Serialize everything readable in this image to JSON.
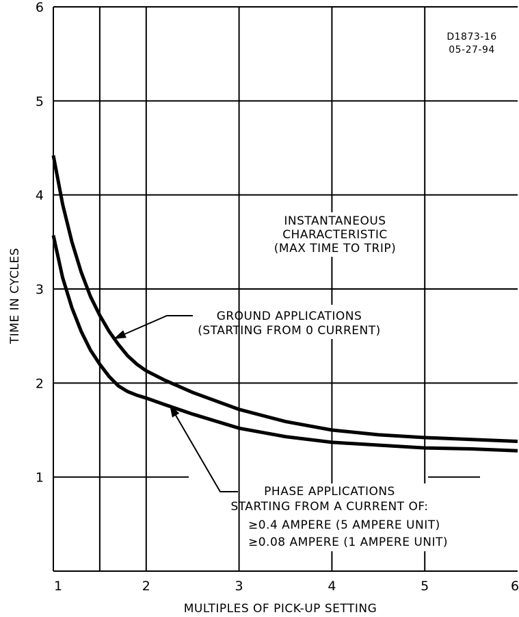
{
  "chart_data": {
    "type": "line",
    "title": "",
    "xlabel": "MULTIPLES OF PICK-UP SETTING",
    "ylabel": "TIME IN CYCLES",
    "xlim": [
      1,
      6
    ],
    "ylim": [
      0,
      6
    ],
    "x_ticks": [
      "1",
      "2",
      "3",
      "4",
      "5",
      "6"
    ],
    "y_ticks": [
      "1",
      "2",
      "3",
      "4",
      "5",
      "6"
    ],
    "grid": true,
    "drawing_ref": [
      "D1873-16",
      "05-27-94"
    ],
    "characteristic_label": [
      "INSTANTANEOUS",
      "CHARACTERISTIC",
      "(MAX TIME TO TRIP)"
    ],
    "series": [
      {
        "label_lines": [
          "GROUND APPLICATIONS",
          "(STARTING FROM 0 CURRENT)"
        ],
        "x": [
          1.0,
          1.1,
          1.2,
          1.3,
          1.4,
          1.5,
          1.6,
          1.7,
          1.8,
          1.9,
          2.0,
          2.2,
          2.5,
          3.0,
          3.5,
          4.0,
          4.5,
          5.0,
          5.5,
          6.0
        ],
        "y": [
          4.42,
          3.9,
          3.5,
          3.18,
          2.92,
          2.72,
          2.55,
          2.41,
          2.29,
          2.2,
          2.13,
          2.03,
          1.9,
          1.72,
          1.59,
          1.5,
          1.45,
          1.42,
          1.4,
          1.38
        ]
      },
      {
        "label_lines": [
          "PHASE APPLICATIONS",
          "STARTING FROM A CURRENT OF:",
          "≥0.4 AMPERE (5 AMPERE UNIT)",
          "≥0.08 AMPERE (1 AMPERE UNIT)"
        ],
        "x": [
          1.0,
          1.1,
          1.2,
          1.3,
          1.4,
          1.5,
          1.6,
          1.7,
          1.8,
          1.9,
          2.0,
          2.2,
          2.5,
          3.0,
          3.5,
          4.0,
          4.5,
          5.0,
          5.5,
          6.0
        ],
        "y": [
          3.57,
          3.12,
          2.8,
          2.55,
          2.35,
          2.2,
          2.07,
          1.97,
          1.91,
          1.87,
          1.84,
          1.77,
          1.67,
          1.52,
          1.43,
          1.37,
          1.34,
          1.31,
          1.3,
          1.28
        ]
      }
    ]
  }
}
